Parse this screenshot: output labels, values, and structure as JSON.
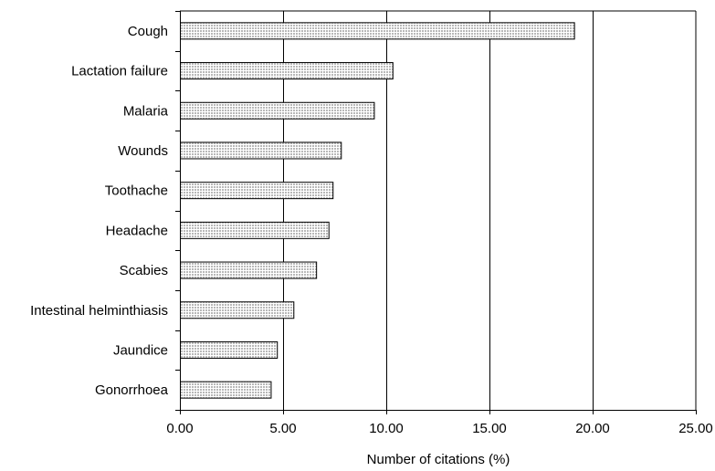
{
  "chart_data": {
    "type": "bar",
    "orientation": "horizontal",
    "categories": [
      "Cough",
      "Lactation failure",
      "Malaria",
      "Wounds",
      "Toothache",
      "Headache",
      "Scabies",
      "Intestinal helminthiasis",
      "Jaundice",
      "Gonorrhoea"
    ],
    "values": [
      19.1,
      10.3,
      9.4,
      7.8,
      7.4,
      7.2,
      6.6,
      5.5,
      4.7,
      4.4
    ],
    "xlabel": "Number of citations (%)",
    "ylabel": "",
    "xlim": [
      0,
      25
    ],
    "xticks": [
      "0.00",
      "5.00",
      "10.00",
      "15.00",
      "20.00",
      "25.00"
    ],
    "grid": "vertical",
    "legend": "none",
    "bar_color": "#d9d9d9"
  }
}
